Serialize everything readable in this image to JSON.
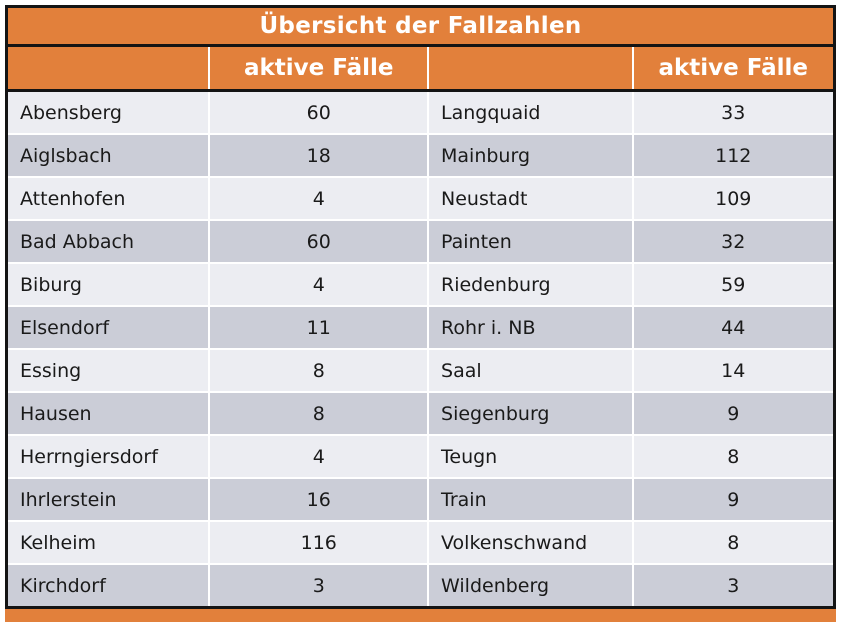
{
  "table": {
    "title": "Übersicht der Fallzahlen",
    "header": {
      "col1": "",
      "col2": "aktive Fälle",
      "col3": "",
      "col4": "aktive Fälle"
    },
    "rows": [
      {
        "left_name": "Abensberg",
        "left_value": "60",
        "right_name": "Langquaid",
        "right_value": "33"
      },
      {
        "left_name": "Aiglsbach",
        "left_value": "18",
        "right_name": "Mainburg",
        "right_value": "112"
      },
      {
        "left_name": "Attenhofen",
        "left_value": "4",
        "right_name": "Neustadt",
        "right_value": "109"
      },
      {
        "left_name": "Bad Abbach",
        "left_value": "60",
        "right_name": "Painten",
        "right_value": "32"
      },
      {
        "left_name": "Biburg",
        "left_value": "4",
        "right_name": "Riedenburg",
        "right_value": "59"
      },
      {
        "left_name": "Elsendorf",
        "left_value": "11",
        "right_name": "Rohr i. NB",
        "right_value": "44"
      },
      {
        "left_name": "Essing",
        "left_value": "8",
        "right_name": "Saal",
        "right_value": "14"
      },
      {
        "left_name": "Hausen",
        "left_value": "8",
        "right_name": "Siegenburg",
        "right_value": "9"
      },
      {
        "left_name": "Herrngiersdorf",
        "left_value": "4",
        "right_name": "Teugn",
        "right_value": "8"
      },
      {
        "left_name": "Ihrlerstein",
        "left_value": "16",
        "right_name": "Train",
        "right_value": "9"
      },
      {
        "left_name": "Kelheim",
        "left_value": "116",
        "right_name": "Volkenschwand",
        "right_value": "8"
      },
      {
        "left_name": "Kirchdorf",
        "left_value": "3",
        "right_name": "Wildenberg",
        "right_value": "3"
      }
    ]
  },
  "colors": {
    "accent_orange": "#E2803B",
    "row_light": "#ECEDF2",
    "row_dark": "#CBCDD7",
    "border_black": "#141414",
    "text_dark": "#1A1A1A",
    "header_text": "#FFFFFF"
  }
}
